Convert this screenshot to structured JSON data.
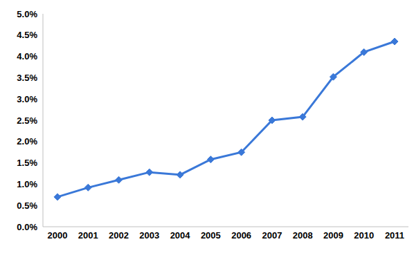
{
  "chart_data": {
    "type": "line",
    "categories": [
      "2000",
      "2001",
      "2002",
      "2003",
      "2004",
      "2005",
      "2006",
      "2007",
      "2008",
      "2009",
      "2010",
      "2011"
    ],
    "values": [
      0.7,
      0.92,
      1.1,
      1.28,
      1.22,
      1.58,
      1.75,
      2.5,
      2.58,
      3.52,
      4.1,
      4.35
    ],
    "color": "#3a78d8",
    "marker": "diamond",
    "line_style": "solid",
    "grid": false,
    "ylim": [
      0,
      5
    ],
    "yticks": [
      {
        "value": 0,
        "label": "0.0%"
      },
      {
        "value": 0.5,
        "label": "0.5%"
      },
      {
        "value": 1,
        "label": "1.0%"
      },
      {
        "value": 1.5,
        "label": "1.5%"
      },
      {
        "value": 2,
        "label": "2.0%"
      },
      {
        "value": 2.5,
        "label": "2.5%"
      },
      {
        "value": 3,
        "label": "3.0%"
      },
      {
        "value": 3.5,
        "label": "3.5%"
      },
      {
        "value": 4,
        "label": "4.0%"
      },
      {
        "value": 4.5,
        "label": "4.5%"
      },
      {
        "value": 5,
        "label": "5.0%"
      }
    ]
  }
}
